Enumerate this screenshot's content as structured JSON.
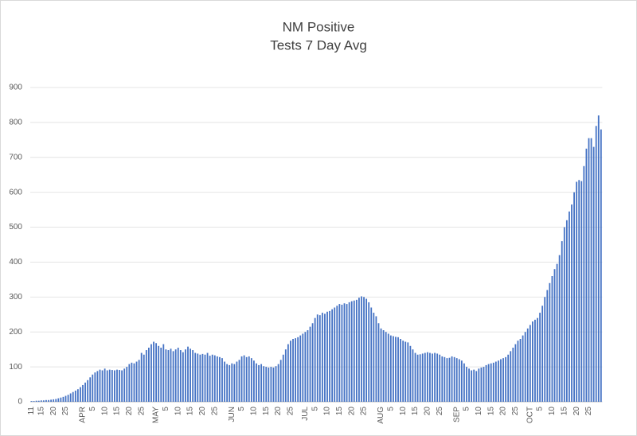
{
  "chart_data": {
    "type": "bar",
    "title": "NM Positive",
    "subtitle": "Tests 7 Day Avg",
    "color": "#4472c4",
    "grid": true,
    "ylim": [
      0,
      900
    ],
    "yticks": [
      0,
      100,
      200,
      300,
      400,
      500,
      600,
      700,
      800,
      900
    ],
    "categories": [
      "11",
      null,
      null,
      null,
      "15",
      null,
      null,
      null,
      null,
      "20",
      null,
      null,
      null,
      null,
      "25",
      null,
      null,
      null,
      null,
      null,
      null,
      "APR",
      null,
      null,
      null,
      "5",
      null,
      null,
      null,
      null,
      "10",
      null,
      null,
      null,
      null,
      "15",
      null,
      null,
      null,
      null,
      "20",
      null,
      null,
      null,
      null,
      "25",
      null,
      null,
      null,
      null,
      null,
      "MAY",
      null,
      null,
      null,
      "5",
      null,
      null,
      null,
      null,
      "10",
      null,
      null,
      null,
      null,
      "15",
      null,
      null,
      null,
      null,
      "20",
      null,
      null,
      null,
      null,
      "25",
      null,
      null,
      null,
      null,
      null,
      null,
      "JUN",
      null,
      null,
      null,
      "5",
      null,
      null,
      null,
      null,
      "10",
      null,
      null,
      null,
      null,
      "15",
      null,
      null,
      null,
      null,
      "20",
      null,
      null,
      null,
      null,
      "25",
      null,
      null,
      null,
      null,
      null,
      "JUL",
      null,
      null,
      null,
      "5",
      null,
      null,
      null,
      null,
      "10",
      null,
      null,
      null,
      null,
      "15",
      null,
      null,
      null,
      null,
      "20",
      null,
      null,
      null,
      null,
      "25",
      null,
      null,
      null,
      null,
      null,
      null,
      "AUG",
      null,
      null,
      null,
      "5",
      null,
      null,
      null,
      null,
      "10",
      null,
      null,
      null,
      null,
      "15",
      null,
      null,
      null,
      null,
      "20",
      null,
      null,
      null,
      null,
      "25",
      null,
      null,
      null,
      null,
      null,
      null,
      "SEP",
      null,
      null,
      null,
      "5",
      null,
      null,
      null,
      null,
      "10",
      null,
      null,
      null,
      null,
      "15",
      null,
      null,
      null,
      null,
      "20",
      null,
      null,
      null,
      null,
      "25",
      null,
      null,
      null,
      null,
      null,
      "OCT",
      null,
      null,
      null,
      "5",
      null,
      null,
      null,
      null,
      "10",
      null,
      null,
      null,
      null,
      "15",
      null,
      null,
      null,
      null,
      "20",
      null,
      null,
      null,
      null,
      "25",
      null,
      null,
      null,
      null,
      null
    ],
    "values": [
      2,
      2,
      3,
      3,
      4,
      4,
      5,
      5,
      6,
      7,
      8,
      10,
      12,
      14,
      17,
      20,
      24,
      28,
      32,
      36,
      42,
      48,
      55,
      62,
      70,
      78,
      84,
      88,
      92,
      90,
      95,
      90,
      92,
      91,
      90,
      92,
      91,
      90,
      95,
      100,
      108,
      112,
      110,
      115,
      120,
      140,
      135,
      148,
      155,
      165,
      172,
      168,
      160,
      155,
      165,
      150,
      148,
      152,
      145,
      150,
      155,
      148,
      142,
      150,
      158,
      152,
      148,
      140,
      138,
      135,
      137,
      135,
      140,
      132,
      135,
      133,
      130,
      128,
      125,
      115,
      108,
      105,
      110,
      108,
      115,
      120,
      130,
      133,
      128,
      130,
      125,
      118,
      110,
      105,
      108,
      102,
      100,
      98,
      100,
      98,
      102,
      108,
      120,
      135,
      150,
      165,
      175,
      180,
      182,
      185,
      190,
      195,
      200,
      205,
      215,
      225,
      240,
      250,
      248,
      255,
      252,
      258,
      260,
      265,
      270,
      275,
      280,
      278,
      282,
      280,
      285,
      288,
      290,
      292,
      298,
      302,
      300,
      295,
      285,
      270,
      255,
      245,
      225,
      210,
      205,
      200,
      195,
      190,
      188,
      186,
      185,
      180,
      175,
      172,
      170,
      160,
      150,
      140,
      135,
      136,
      138,
      140,
      142,
      140,
      138,
      140,
      138,
      135,
      130,
      128,
      125,
      126,
      130,
      128,
      125,
      122,
      118,
      110,
      100,
      95,
      90,
      92,
      88,
      95,
      98,
      100,
      105,
      108,
      110,
      112,
      115,
      118,
      122,
      125,
      128,
      135,
      145,
      155,
      165,
      175,
      180,
      190,
      200,
      210,
      220,
      230,
      235,
      240,
      255,
      275,
      300,
      320,
      340,
      360,
      380,
      395,
      420,
      460,
      500,
      520,
      545,
      565,
      600,
      630,
      635,
      632,
      675,
      725,
      755,
      755,
      730,
      790,
      820,
      780
    ]
  }
}
